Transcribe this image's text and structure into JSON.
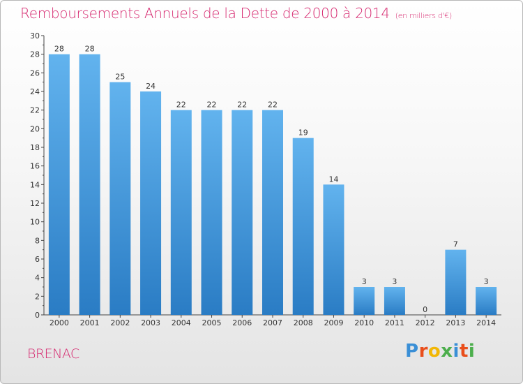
{
  "title": "Remboursements Annuels de la Dette de 2000 à 2014",
  "unit": "(en milliers d'€)",
  "commune": "BRENAC",
  "logo": {
    "letters": [
      {
        "ch": "P",
        "color": "#3a8fd6"
      },
      {
        "ch": "r",
        "color": "#e94e1b"
      },
      {
        "ch": "o",
        "color": "#f2b705"
      },
      {
        "ch": "x",
        "color": "#4cae4c"
      },
      {
        "ch": "i",
        "color": "#3a8fd6"
      },
      {
        "ch": "t",
        "color": "#e94e1b"
      },
      {
        "ch": "i",
        "color": "#4cae4c"
      }
    ]
  },
  "colors": {
    "bar_top": "#62b3ee",
    "bar_bottom": "#2a7cc4",
    "title": "#d6286f"
  },
  "chart_data": {
    "type": "bar",
    "categories": [
      "2000",
      "2001",
      "2002",
      "2003",
      "2004",
      "2005",
      "2006",
      "2007",
      "2008",
      "2009",
      "2010",
      "2011",
      "2012",
      "2013",
      "2014"
    ],
    "values": [
      28,
      28,
      25,
      24,
      22,
      22,
      22,
      22,
      19,
      14,
      3,
      3,
      0,
      7,
      3
    ],
    "title": "Remboursements Annuels de la Dette de 2000 à 2014",
    "ylim": [
      0,
      30
    ],
    "yticks": [
      0,
      2,
      4,
      6,
      8,
      10,
      12,
      14,
      16,
      18,
      20,
      22,
      24,
      26,
      28,
      30
    ],
    "grid": false
  }
}
